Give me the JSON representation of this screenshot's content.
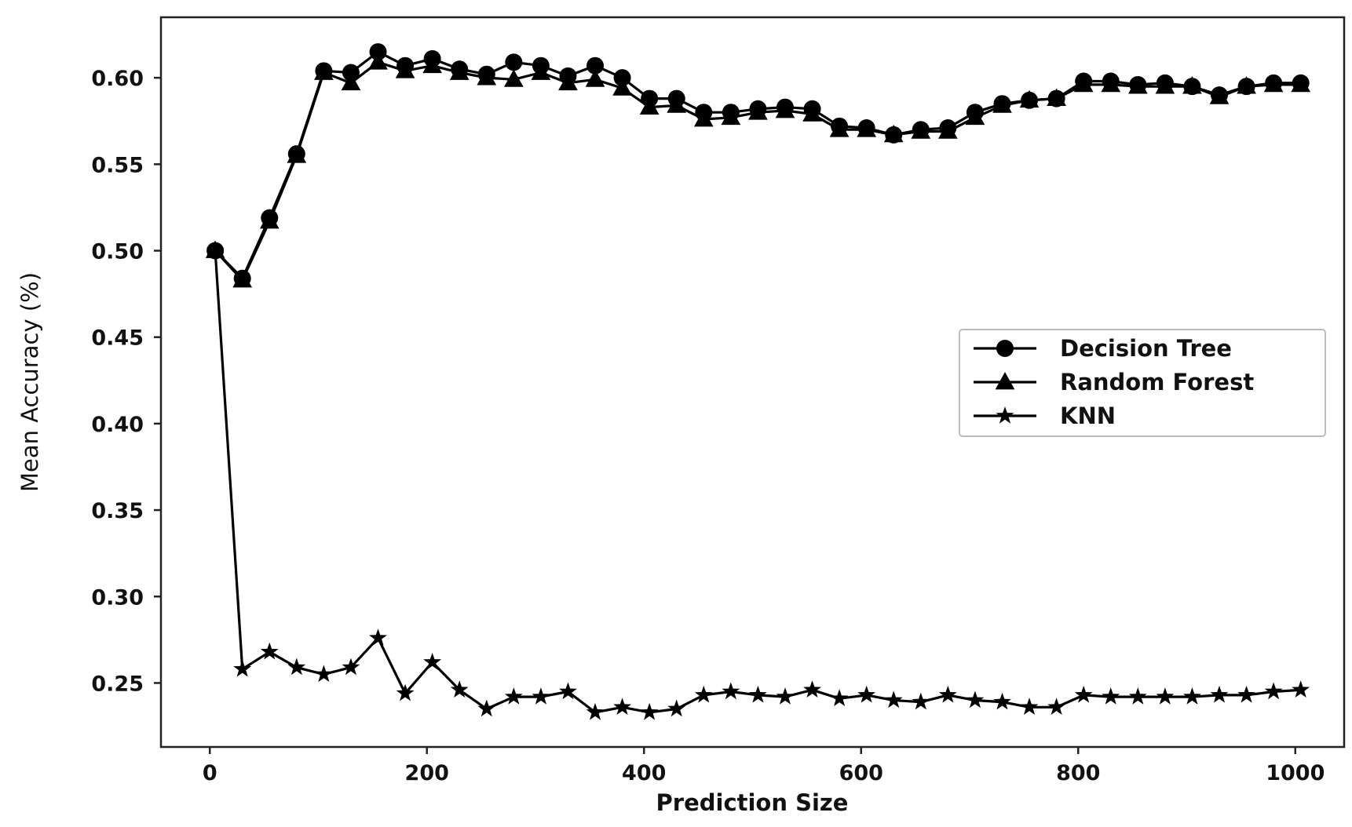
{
  "chart_data": {
    "type": "line",
    "title": "",
    "xlabel": "Prediction Size",
    "ylabel": "Mean Accuracy (%)",
    "xlim": [
      -45,
      1045
    ],
    "ylim": [
      0.213,
      0.635
    ],
    "xticks": [
      0,
      200,
      400,
      600,
      800,
      1000
    ],
    "yticks": [
      0.25,
      0.3,
      0.35,
      0.4,
      0.45,
      0.5,
      0.55,
      0.6
    ],
    "ytick_labels": [
      "0.25",
      "0.30",
      "0.35",
      "0.40",
      "0.45",
      "0.50",
      "0.55",
      "0.60"
    ],
    "xtick_labels": [
      "0",
      "200",
      "400",
      "600",
      "800",
      "1000"
    ],
    "grid": false,
    "legend_position": "center-right",
    "line_color": "#000000",
    "x": [
      5,
      30,
      55,
      80,
      105,
      130,
      155,
      180,
      205,
      230,
      255,
      280,
      305,
      330,
      355,
      380,
      405,
      430,
      455,
      480,
      505,
      530,
      555,
      580,
      605,
      630,
      655,
      680,
      705,
      730,
      755,
      780,
      805,
      830,
      855,
      880,
      905,
      930,
      955,
      980,
      1005
    ],
    "series": [
      {
        "name": "Decision Tree",
        "marker": "circle",
        "values": [
          0.5,
          0.484,
          0.519,
          0.556,
          0.604,
          0.603,
          0.615,
          0.607,
          0.611,
          0.605,
          0.602,
          0.609,
          0.607,
          0.601,
          0.607,
          0.6,
          0.588,
          0.588,
          0.58,
          0.58,
          0.582,
          0.583,
          0.582,
          0.572,
          0.571,
          0.567,
          0.57,
          0.571,
          0.58,
          0.585,
          0.587,
          0.588,
          0.598,
          0.598,
          0.596,
          0.597,
          0.595,
          0.59,
          0.595,
          0.597,
          0.597
        ]
      },
      {
        "name": "Random Forest",
        "marker": "triangle",
        "values": [
          0.5,
          0.483,
          0.517,
          0.555,
          0.603,
          0.597,
          0.609,
          0.604,
          0.607,
          0.603,
          0.6,
          0.599,
          0.603,
          0.597,
          0.599,
          0.594,
          0.583,
          0.584,
          0.576,
          0.577,
          0.58,
          0.581,
          0.579,
          0.57,
          0.57,
          0.567,
          0.569,
          0.569,
          0.577,
          0.584,
          0.587,
          0.588,
          0.596,
          0.596,
          0.595,
          0.595,
          0.595,
          0.589,
          0.595,
          0.596,
          0.596
        ]
      },
      {
        "name": "KNN",
        "marker": "star",
        "values": [
          0.5,
          0.258,
          0.268,
          0.259,
          0.255,
          0.259,
          0.276,
          0.244,
          0.262,
          0.246,
          0.235,
          0.242,
          0.242,
          0.245,
          0.233,
          0.236,
          0.233,
          0.235,
          0.243,
          0.245,
          0.243,
          0.242,
          0.246,
          0.241,
          0.243,
          0.24,
          0.239,
          0.243,
          0.24,
          0.239,
          0.236,
          0.236,
          0.243,
          0.242,
          0.242,
          0.242,
          0.242,
          0.243,
          0.243,
          0.245,
          0.246
        ]
      }
    ]
  }
}
